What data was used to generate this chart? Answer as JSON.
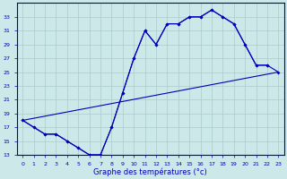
{
  "xlabel": "Graphe des températures (°c)",
  "background_color": "#cce8e8",
  "grid_color": "#aacccc",
  "line_color": "#0000bb",
  "ylim": [
    13,
    35
  ],
  "xlim": [
    -0.5,
    23.5
  ],
  "yticks": [
    13,
    15,
    17,
    19,
    21,
    23,
    25,
    27,
    29,
    31,
    33
  ],
  "xticks": [
    0,
    1,
    2,
    3,
    4,
    5,
    6,
    7,
    8,
    9,
    10,
    11,
    12,
    13,
    14,
    15,
    16,
    17,
    18,
    19,
    20,
    21,
    22,
    23
  ],
  "line1_x": [
    0,
    1,
    2,
    3,
    4,
    5,
    6,
    7,
    8,
    9,
    10,
    11,
    12,
    13,
    14,
    15,
    16,
    17,
    18,
    19,
    20,
    21,
    22
  ],
  "line1_y": [
    18,
    17,
    16,
    16,
    15,
    14,
    13,
    13,
    17,
    22,
    27,
    31,
    29,
    32,
    32,
    33,
    33,
    34,
    33,
    32,
    29,
    26,
    26
  ],
  "line2_x": [
    0,
    1,
    2,
    3,
    4,
    5,
    6,
    7,
    8,
    9,
    10,
    11,
    12,
    13,
    14,
    15,
    16,
    17,
    18,
    19,
    20,
    21,
    22,
    23
  ],
  "line2_y": [
    18,
    17,
    16,
    16,
    15,
    14,
    13,
    13,
    17,
    22,
    27,
    31,
    29,
    32,
    32,
    33,
    33,
    34,
    33,
    32,
    29,
    26,
    26,
    25
  ],
  "line3_x": [
    0,
    23
  ],
  "line3_y": [
    18,
    25
  ]
}
